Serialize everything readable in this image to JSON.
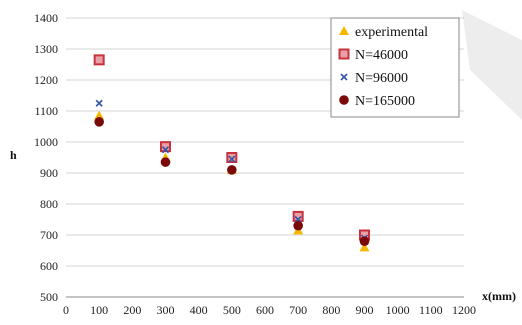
{
  "chart_data": {
    "type": "scatter",
    "xlabel": "x(mm)",
    "ylabel": "h",
    "xlim": [
      0,
      1200
    ],
    "ylim": [
      500,
      1400
    ],
    "x_ticks": [
      0,
      100,
      200,
      300,
      400,
      500,
      600,
      700,
      800,
      900,
      1000,
      1100,
      1200
    ],
    "y_ticks": [
      500,
      600,
      700,
      800,
      900,
      1000,
      1100,
      1200,
      1300,
      1400
    ],
    "grid": "horizontal",
    "legend_position": "top-right",
    "series": [
      {
        "name": "experimental",
        "marker": "triangle",
        "color": "#f5b800",
        "x": [
          100,
          300,
          500,
          700,
          900
        ],
        "y": [
          1085,
          950,
          910,
          715,
          660
        ]
      },
      {
        "name": "N=46000",
        "marker": "square",
        "color": "#c8323c",
        "x": [
          100,
          300,
          500,
          700,
          900
        ],
        "y": [
          1265,
          985,
          950,
          760,
          700
        ]
      },
      {
        "name": "N=96000",
        "marker": "x",
        "color": "#3355aa",
        "x": [
          100,
          300,
          500,
          700,
          900
        ],
        "y": [
          1125,
          975,
          945,
          750,
          690
        ]
      },
      {
        "name": "N=165000",
        "marker": "circle",
        "color": "#7a0a0a",
        "x": [
          100,
          300,
          500,
          700,
          900
        ],
        "y": [
          1065,
          935,
          910,
          730,
          680
        ]
      }
    ]
  }
}
